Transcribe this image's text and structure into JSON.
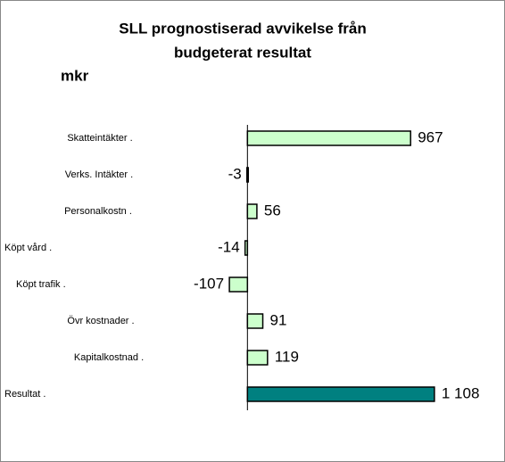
{
  "chart_data": {
    "type": "barh",
    "title": [
      "SLL prognostiserad avvikelse från",
      "budgeterat resultat"
    ],
    "subtitle": "mkr",
    "categories": [
      "Skatteintäkter .",
      "Verks. Intäkter .",
      "Personalkostn .",
      "Köpt vård  .",
      "Köpt trafik   .",
      "Övr kostnader  .",
      "Kapitalkostnad .",
      "Resultat  ."
    ],
    "values": [
      967,
      -3,
      56,
      -14,
      -107,
      91,
      119,
      1108
    ],
    "value_labels": [
      "967",
      "-3",
      "56",
      "-14",
      "-107",
      "91",
      "119",
      "1 108"
    ],
    "colors": [
      "#ccffcc",
      "#ccffcc",
      "#ccffcc",
      "#ccffcc",
      "#ccffcc",
      "#ccffcc",
      "#ccffcc",
      "#008080"
    ],
    "xlim": [
      -1440,
      1500
    ]
  }
}
